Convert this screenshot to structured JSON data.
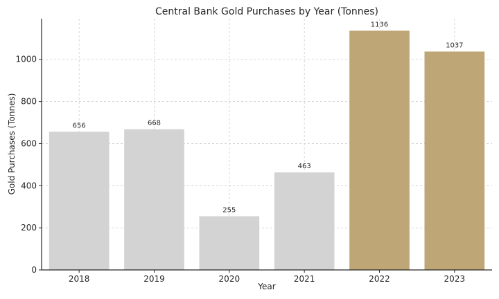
{
  "chart_data": {
    "type": "bar",
    "title": "Central Bank Gold Purchases by Year (Tonnes)",
    "xlabel": "Year",
    "ylabel": "Gold Purchases (Tonnes)",
    "categories": [
      "2018",
      "2019",
      "2020",
      "2021",
      "2022",
      "2023"
    ],
    "values": [
      656,
      668,
      255,
      463,
      1136,
      1037
    ],
    "data_labels": [
      "656",
      "668",
      "255",
      "463",
      "1136",
      "1037"
    ],
    "bar_colors": [
      "#d3d3d3",
      "#d3d3d3",
      "#d3d3d3",
      "#d3d3d3",
      "#bfa677",
      "#bfa677"
    ],
    "ylim": [
      0,
      1193
    ],
    "yticks": [
      0,
      200,
      400,
      600,
      800,
      1000
    ],
    "ytick_labels": [
      "0",
      "200",
      "400",
      "600",
      "800",
      "1000"
    ],
    "grid": true,
    "legend": "none"
  }
}
